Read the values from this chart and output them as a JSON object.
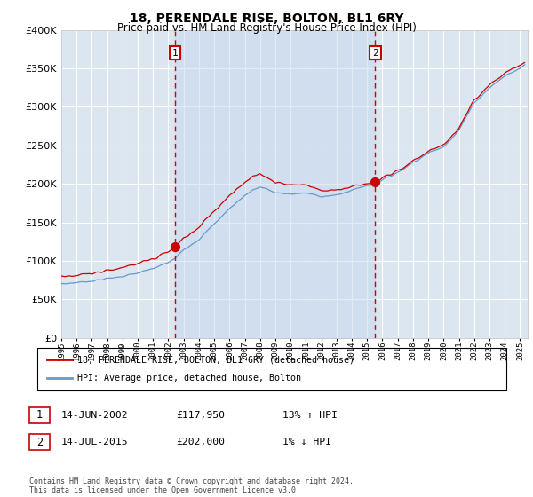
{
  "title": "18, PERENDALE RISE, BOLTON, BL1 6RY",
  "subtitle": "Price paid vs. HM Land Registry's House Price Index (HPI)",
  "legend_line1": "18, PERENDALE RISE, BOLTON, BL1 6RY (detached house)",
  "legend_line2": "HPI: Average price, detached house, Bolton",
  "footnote": "Contains HM Land Registry data © Crown copyright and database right 2024.\nThis data is licensed under the Open Government Licence v3.0.",
  "marker1_date": "14-JUN-2002",
  "marker1_price": "£117,950",
  "marker1_hpi": "13% ↑ HPI",
  "marker1_x": 2002.45,
  "marker2_date": "14-JUL-2015",
  "marker2_price": "£202,000",
  "marker2_hpi": "1% ↓ HPI",
  "marker2_x": 2015.53,
  "sale1_y": 117950,
  "sale2_y": 202000,
  "ylim": [
    0,
    400000
  ],
  "yticks": [
    0,
    50000,
    100000,
    150000,
    200000,
    250000,
    300000,
    350000,
    400000
  ],
  "xlim_start": 1995.0,
  "xlim_end": 2025.5,
  "background_color": "#dce6f1",
  "grid_color": "#ffffff",
  "red_line_color": "#cc0000",
  "blue_line_color": "#6699cc",
  "shade_color": "#c8d8ee",
  "dashed_line_color": "#cc0000",
  "marker_box_color": "#cc0000"
}
